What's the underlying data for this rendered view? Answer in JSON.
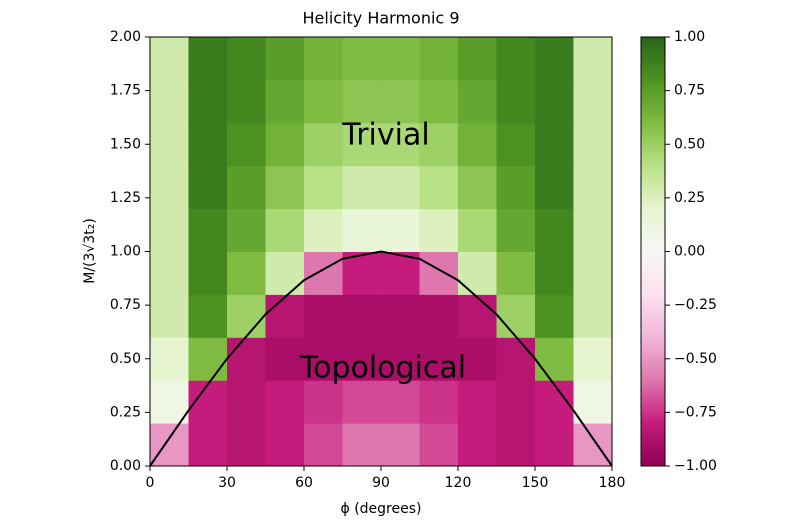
{
  "chart_data": {
    "type": "heatmap",
    "title": "Helicity Harmonic 9",
    "xlabel": "ϕ (degrees)",
    "ylabel": "M/(3√3t₂)",
    "colormap": "PiYG",
    "x_bins": [
      0,
      15,
      30,
      45,
      60,
      75,
      90,
      105,
      120,
      135,
      150,
      165,
      180
    ],
    "y_bins": [
      0,
      0.2,
      0.4,
      0.6,
      0.8,
      1.0,
      1.2,
      1.4,
      1.6,
      1.8,
      2.0
    ],
    "z": [
      [
        -0.5,
        -0.8,
        -0.85,
        -0.8,
        -0.7,
        -0.6,
        -0.6,
        -0.7,
        -0.8,
        -0.85,
        -0.8,
        -0.5
      ],
      [
        0.1,
        -0.8,
        -0.85,
        -0.8,
        -0.75,
        -0.7,
        -0.7,
        -0.75,
        -0.8,
        -0.85,
        -0.8,
        0.1
      ],
      [
        0.2,
        0.6,
        -0.85,
        -0.9,
        -0.9,
        -0.9,
        -0.9,
        -0.9,
        -0.9,
        -0.85,
        0.6,
        0.2
      ],
      [
        0.3,
        0.8,
        0.5,
        -0.85,
        -0.9,
        -0.9,
        -0.9,
        -0.9,
        -0.85,
        0.5,
        0.8,
        0.3
      ],
      [
        0.3,
        0.85,
        0.6,
        0.3,
        -0.6,
        -0.8,
        -0.8,
        -0.6,
        0.3,
        0.6,
        0.85,
        0.3
      ],
      [
        0.3,
        0.85,
        0.7,
        0.45,
        0.25,
        0.15,
        0.15,
        0.25,
        0.45,
        0.7,
        0.85,
        0.3
      ],
      [
        0.3,
        0.9,
        0.75,
        0.55,
        0.4,
        0.3,
        0.3,
        0.4,
        0.55,
        0.75,
        0.9,
        0.3
      ],
      [
        0.3,
        0.9,
        0.8,
        0.65,
        0.5,
        0.45,
        0.45,
        0.5,
        0.65,
        0.8,
        0.9,
        0.3
      ],
      [
        0.3,
        0.9,
        0.85,
        0.7,
        0.6,
        0.55,
        0.55,
        0.6,
        0.7,
        0.85,
        0.9,
        0.3
      ],
      [
        0.3,
        0.9,
        0.85,
        0.75,
        0.65,
        0.6,
        0.6,
        0.65,
        0.75,
        0.85,
        0.9,
        0.3
      ]
    ],
    "curve": {
      "color": "#000000",
      "x": [
        0,
        15,
        30,
        45,
        60,
        75,
        90,
        105,
        120,
        135,
        150,
        165,
        180
      ],
      "y": [
        0,
        0.259,
        0.5,
        0.707,
        0.866,
        0.966,
        1,
        0.966,
        0.866,
        0.707,
        0.5,
        0.259,
        0
      ]
    },
    "annotations": [
      "Trivial",
      "Topological"
    ],
    "xlim": [
      0,
      180
    ],
    "ylim": [
      0,
      2
    ],
    "xticks": [
      0,
      30,
      60,
      90,
      120,
      150,
      180
    ],
    "yticks": [
      {
        "value": 0,
        "label": "0.00"
      },
      {
        "value": 0.25,
        "label": "0.25"
      },
      {
        "value": 0.5,
        "label": "0.50"
      },
      {
        "value": 0.75,
        "label": "0.75"
      },
      {
        "value": 1,
        "label": "1.00"
      },
      {
        "value": 1.25,
        "label": "1.25"
      },
      {
        "value": 1.5,
        "label": "1.50"
      },
      {
        "value": 1.75,
        "label": "1.75"
      },
      {
        "value": 2,
        "label": "2.00"
      }
    ],
    "clim": [
      -1,
      1
    ],
    "cticks": [
      {
        "value": -1,
        "label": "−1.00"
      },
      {
        "value": -0.75,
        "label": "−0.75"
      },
      {
        "value": -0.5,
        "label": "−0.50"
      },
      {
        "value": -0.25,
        "label": "−0.25"
      },
      {
        "value": 0,
        "label": "0.00"
      },
      {
        "value": 0.25,
        "label": "0.25"
      },
      {
        "value": 0.5,
        "label": "0.50"
      },
      {
        "value": 0.75,
        "label": "0.75"
      },
      {
        "value": 1,
        "label": "1.00"
      }
    ]
  }
}
